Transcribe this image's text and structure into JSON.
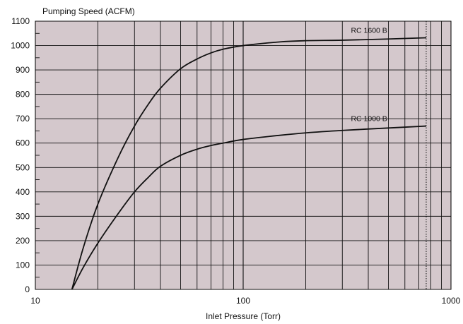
{
  "chart_data": {
    "type": "line",
    "title": "",
    "ylabel": "Pumping Speed (ACFM)",
    "xlabel": "Inlet Pressure (Torr)",
    "x_scale": "log",
    "xlim": [
      10,
      1000
    ],
    "ylim": [
      0,
      1100
    ],
    "grid": true,
    "plot_background": "#d4c8cc",
    "line_color": "#111111",
    "x_major_ticks": [
      10,
      100,
      1000
    ],
    "x_tick_labels": [
      "10",
      "100",
      "1000"
    ],
    "x_minor_grid": [
      20,
      30,
      40,
      50,
      60,
      70,
      80,
      90,
      200,
      300,
      400,
      500,
      600,
      700,
      800,
      900
    ],
    "y_ticks": [
      0,
      100,
      200,
      300,
      400,
      500,
      600,
      700,
      800,
      900,
      1000,
      1100
    ],
    "y_tick_labels": [
      "0",
      "100",
      "200",
      "300",
      "400",
      "500",
      "600",
      "700",
      "800",
      "900",
      "1000",
      "1100"
    ],
    "reference_line": {
      "x": 760,
      "style": "dotted"
    },
    "series": [
      {
        "name": "RC 1600 B",
        "x": [
          15,
          17,
          20,
          25,
          30,
          35,
          40,
          50,
          60,
          70,
          80,
          100,
          150,
          200,
          300,
          500,
          760
        ],
        "y": [
          0,
          170,
          350,
          540,
          670,
          760,
          825,
          905,
          945,
          970,
          985,
          1000,
          1015,
          1020,
          1022,
          1027,
          1032
        ]
      },
      {
        "name": "RC 1000 B",
        "x": [
          15,
          17,
          20,
          25,
          30,
          35,
          40,
          50,
          60,
          70,
          80,
          100,
          150,
          200,
          300,
          500,
          760
        ],
        "y": [
          0,
          90,
          190,
          310,
          400,
          460,
          505,
          550,
          575,
          590,
          600,
          615,
          632,
          642,
          652,
          662,
          670
        ]
      }
    ]
  }
}
